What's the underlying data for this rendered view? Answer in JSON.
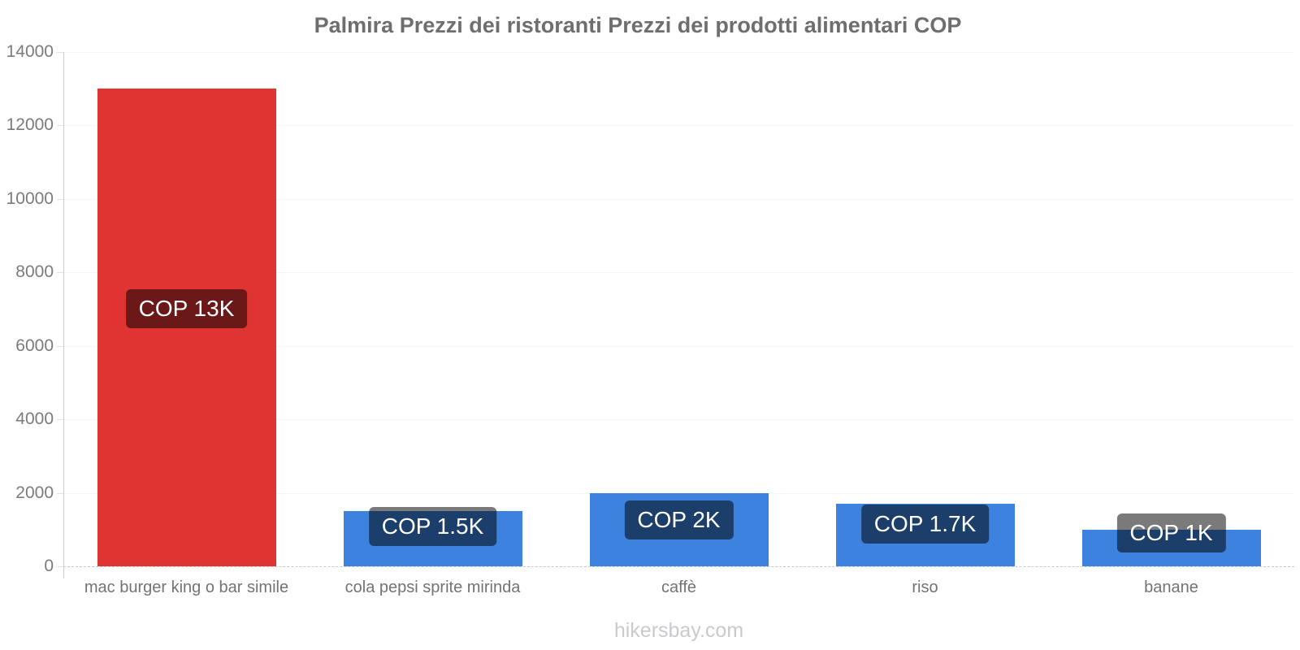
{
  "title": "Palmira Prezzi dei ristoranti Prezzi dei prodotti alimentari COP",
  "footer": "hikersbay.com",
  "colors": {
    "restaurant_bar_red": "#e03432",
    "grocery_bar_blue": "#3c82de",
    "value_label_background": "rgba(0,0,0,0.52)",
    "value_label_text": "#ffffff",
    "title_text": "#6e6e6e",
    "axis_text": "#7b7b7b",
    "axis_line": "#cccccc",
    "gridline": "#f5f5f5"
  },
  "chart_data": {
    "type": "bar",
    "title": "Palmira Prezzi dei ristoranti Prezzi dei prodotti alimentari COP",
    "categories": [
      "mac burger king o bar simile",
      "cola pepsi sprite mirinda",
      "caffè",
      "riso",
      "banane"
    ],
    "values": [
      13000,
      1500,
      2000,
      1700,
      1000
    ],
    "bar_labels": [
      "COP 13K",
      "COP 1.5K",
      "COP 2K",
      "COP 1.7K",
      "COP 1K"
    ],
    "bar_colors": [
      "#e03432",
      "#3c82de",
      "#3c82de",
      "#3c82de",
      "#3c82de"
    ],
    "currency": "COP",
    "xlabel": "",
    "ylabel": "",
    "ylim": [
      0,
      14000
    ],
    "yticks": [
      0,
      2000,
      4000,
      6000,
      8000,
      10000,
      12000,
      14000
    ],
    "grid": "faint horizontal gridlines, dashed zero baseline",
    "legend": "none",
    "watermark": "hikersbay.com"
  }
}
